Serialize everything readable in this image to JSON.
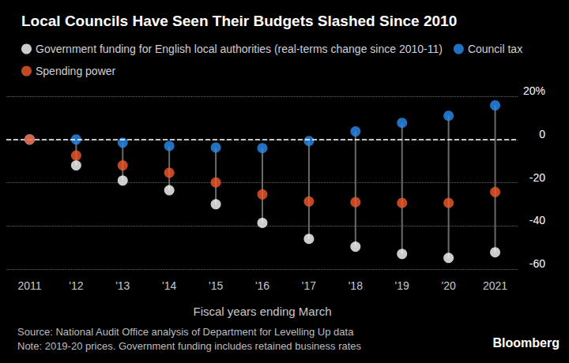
{
  "chart_data": {
    "type": "scatter",
    "title": "Local Councils Have Seen Their Budgets Slashed Since 2010",
    "x_label": "Fiscal years ending March",
    "source": "Source: National Audit Office analysis of Department for Levelling Up data",
    "note": "Note: 2019-20 prices. Government funding includes retained business rates",
    "credit": "Bloomberg",
    "categories": [
      "2011",
      "'12",
      "'13",
      "'14",
      "'15",
      "'16",
      "'17",
      "'18",
      "'19",
      "'20",
      "2021"
    ],
    "series": [
      {
        "name": "Government funding for English local authorities (real-terms change since 2010-11)",
        "color": "#ffffff",
        "values": [
          0,
          -12,
          -19,
          -23.5,
          -30,
          -38.6,
          -46,
          -49.6,
          -53,
          -54.8,
          -52.2
        ]
      },
      {
        "name": "Council tax",
        "color": "#2a8cf0",
        "values": [
          0,
          0,
          -1.5,
          -3,
          -3.7,
          -4,
          -0.7,
          3.7,
          7.7,
          11,
          15.8
        ]
      },
      {
        "name": "Spending power",
        "color": "#f35a2c",
        "values": [
          0,
          -7.4,
          -12,
          -15.4,
          -19.9,
          -25.4,
          -28.7,
          -29,
          -29.4,
          -29.4,
          -24.3
        ]
      }
    ],
    "ylim": [
      -60,
      20
    ],
    "yticks": [
      -60,
      -40,
      -20,
      0,
      {
        "value": 20,
        "label": "20%"
      }
    ],
    "grid": true,
    "legend": "top-left"
  }
}
